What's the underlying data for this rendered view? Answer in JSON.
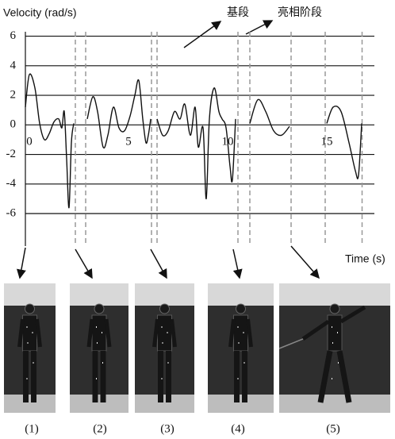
{
  "chart_data": {
    "type": "line",
    "y_label": "Velocity (rad/s)",
    "x_label": "Time (s)",
    "annotations": [
      "基段",
      "亮相阶段"
    ],
    "x": [
      0,
      0.2,
      0.48,
      0.72,
      0.96,
      1.2,
      1.44,
      1.68,
      1.84,
      1.96,
      2.08,
      2.2,
      2.32,
      2.44,
      2.6,
      3.12,
      3.4,
      3.64,
      3.92,
      4.16,
      4.44,
      4.72,
      5,
      5.28,
      5.52,
      5.72,
      5.92,
      6.08,
      6.2,
      6.32,
      6.5,
      6.64,
      6.92,
      7.2,
      7.52,
      7.8,
      8.04,
      8.32,
      8.56,
      8.72,
      8.96,
      9.12,
      9.28,
      9.52,
      9.76,
      9.92,
      10.12,
      10.32,
      10.44,
      10.6,
      11,
      11.32,
      11.72,
      12.12,
      12.52,
      12.92,
      13.32,
      14,
      15.2,
      15.52,
      15.92,
      16.32,
      16.64,
      16.8,
      16.96
    ],
    "series": [
      {
        "color": "#111111",
        "values": [
          1.2,
          3.4,
          2.5,
          0.1,
          -1,
          -0.6,
          0.2,
          0.4,
          -0.2,
          0.9,
          -2.3,
          -5.6,
          -1.2,
          0.1,
          null,
          0.4,
          1.9,
          0.9,
          -1.5,
          -0.7,
          1.2,
          -0.2,
          -0.4,
          0.6,
          2.0,
          3.0,
          0.4,
          -1.2,
          -0.7,
          0.4,
          null,
          0.4,
          -0.7,
          -0.4,
          0.9,
          0.4,
          1.4,
          -0.7,
          1.2,
          -1.5,
          -0.2,
          -5,
          0.4,
          2.5,
          0.9,
          0.4,
          -0.2,
          -2.8,
          -3.7,
          0.4,
          null,
          0.1,
          1.7,
          0.9,
          -0.4,
          -0.7,
          -0.1,
          null,
          0.1,
          1.2,
          0.9,
          -1.2,
          -3.1,
          -3.4,
          0.1
        ]
      }
    ],
    "segment_boundaries": [
      2.52,
      3.04,
      6.36,
      6.64,
      10.72,
      11.32,
      13.4,
      15.12,
      16.98
    ],
    "xlim": [
      0,
      17.6
    ],
    "ylim": [
      -8.2,
      6.3
    ],
    "xticks": [
      0,
      5,
      10,
      15
    ],
    "yticks": [
      -6,
      -4,
      -2,
      0,
      2,
      4,
      6
    ],
    "grid": true
  },
  "panels": {
    "labels": [
      "(1)",
      "(2)",
      "(3)",
      "(4)",
      "(5)"
    ]
  }
}
